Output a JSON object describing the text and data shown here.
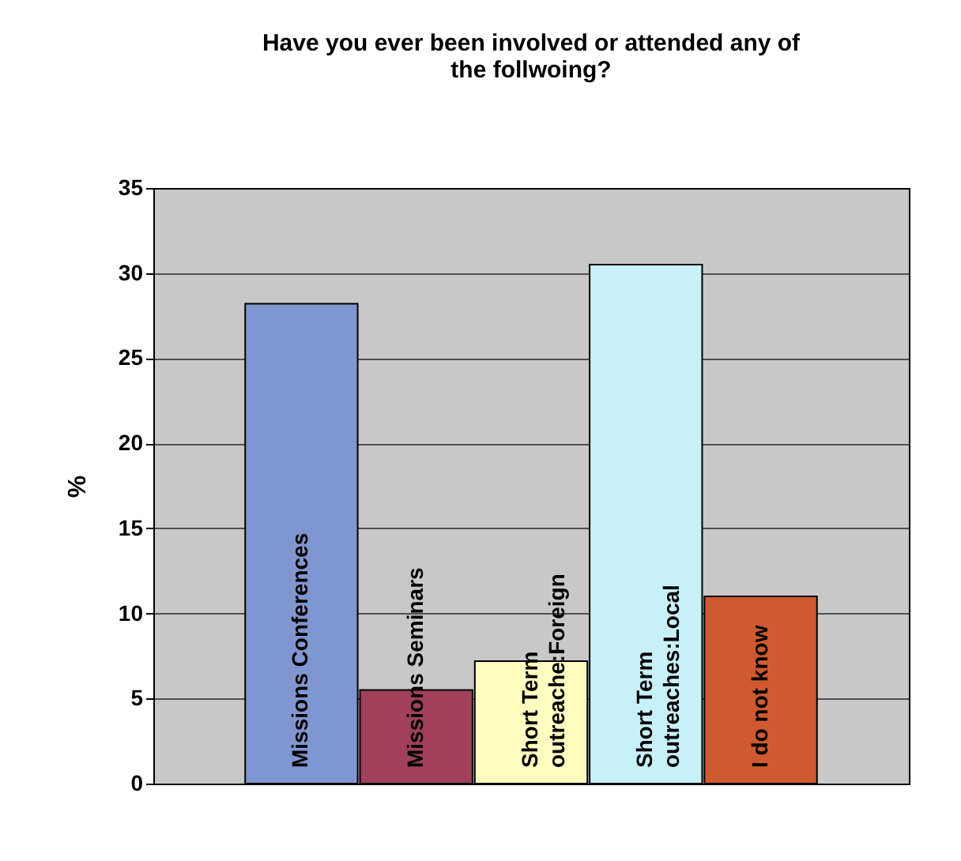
{
  "chart_data": {
    "type": "bar",
    "title": [
      "Have you ever been involved or attended any of",
      "the follwoing?"
    ],
    "ylabel": "%",
    "categories": [
      "Missions Conferences",
      "Missions Seminars",
      "Short Term\noutreache:Foreign",
      "Short Term\noutreaches:Local",
      "I do not know"
    ],
    "values": [
      28.2,
      5.5,
      7.2,
      30.5,
      11.0
    ],
    "colors": [
      "#8096d0",
      "#a0405a",
      "#fffcc0",
      "#c8f0f8",
      "#d05a30"
    ],
    "ylim": [
      0,
      35
    ],
    "yticks": [
      0,
      5,
      10,
      15,
      20,
      25,
      30,
      35
    ],
    "grid": "y",
    "tick_labels": "y"
  }
}
